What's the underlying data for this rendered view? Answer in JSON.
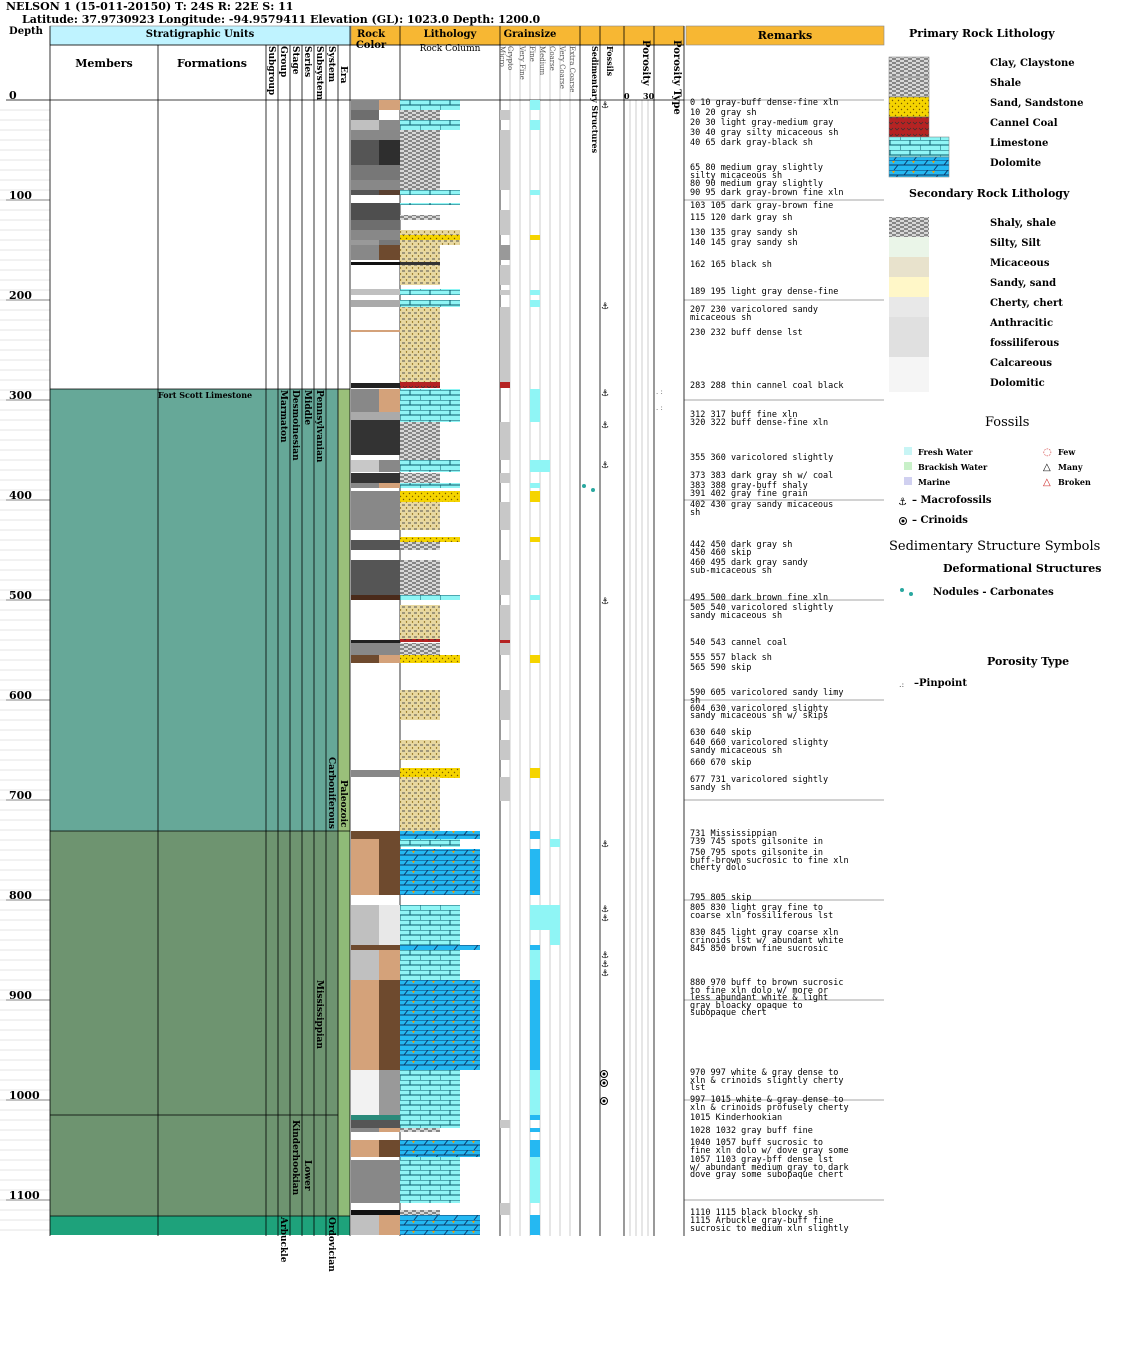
{
  "header": {
    "line1": "NELSON 1 (15-011-20150) T: 24S R: 22E S: 11",
    "line2": "Latitude: 37.9730923 Longitude: -94.9579411 Elevation (GL): 1023.0 Depth: 1200.0"
  },
  "columns": {
    "depth": "Depth",
    "strat_units": "Stratigraphic Units",
    "members": "Members",
    "formations": "Formations",
    "rank_labels": [
      "Subgroup",
      "Group",
      "Stage",
      "Series",
      "Subsystem",
      "System",
      "Era"
    ],
    "rock_color": "Rock Color",
    "lithology": "Lithology",
    "rock_column": "Rock Column",
    "grainsize": "Grainsize",
    "grain_classes": [
      "Micro",
      "Crypto",
      "Very Fine",
      "Fine",
      "Medium",
      "Coarse",
      "Very Coarse",
      "Extra Coarse"
    ],
    "sed_structures": "Sedimentary Structures",
    "fossils": "Fossils",
    "porosity": "Porosity",
    "porosity_scale": [
      "0",
      "30"
    ],
    "porosity_type": "Porosity Type",
    "remarks": "Remarks"
  },
  "depth_ticks": [
    "0",
    "100",
    "200",
    "300",
    "400",
    "500",
    "600",
    "700",
    "800",
    "900",
    "1000",
    "1100"
  ],
  "strat_labels": {
    "formation": "Fort Scott Limestone",
    "group": "Marmaton",
    "stage": "Desmoinesian",
    "series_middle": "Middle",
    "subsystem_penn": "Pennsylvanian",
    "system_carb": "Carboniferous",
    "era": "Paleozoic",
    "subsystem_miss": "Mississippian",
    "stage_kind": "Kinderhookian",
    "series_lower": "Lower",
    "group_arb": "Arbuckle",
    "system_ord": "Ordovician"
  },
  "remarks": [
    "0 10 gray-buff dense-fine xln",
    "10 20 gray sh",
    "20 30 light gray-medium gray",
    "30 40 gray silty micaceous sh",
    "40 65 dark gray-black sh",
    "65 80 medium gray slightly\nsilty micaceous sh",
    "80 90 medium gray slightly",
    "90 95 dark gray-brown fine xln",
    "103 105 dark gray-brown fine",
    "115 120 dark gray sh",
    "130 135 gray sandy sh",
    "140 145 gray sandy sh",
    "162 165 black sh",
    "189 195 light gray dense-fine",
    "207 230 varicolored sandy\nmicaceous sh",
    "230 232 buff dense lst",
    "283 288 thin cannel coal black",
    "312 317 buff fine xln",
    "320 322 buff dense-fine xln",
    "355 360 varicolored slightly",
    "373 383 dark gray sh w/ coal",
    "383 388 gray-buff shaly",
    "391 402 gray fine grain",
    "402 430 gray sandy micaceous\nsh",
    "442 450 dark gray sh",
    "450 460 skip",
    "460 495 dark gray sandy\nsub-micaceous sh",
    "495 500 dark brown fine xln",
    "505 540 varicolored slightly\nsandy micaceous sh",
    "540 543 cannel coal",
    "555 557 black sh",
    "565 590 skip",
    "590 605 varicolored sandy limy\nsh",
    "604 630 varicolored slighty\nsandy micaceous sh w/ skips",
    "630 640 skip",
    "640 660 varicolored slighty\nsandy micaceous sh",
    "660 670 skip",
    "677 731 varicolored sightly\nsandy sh",
    "731 Mississippian",
    "739 745 spots gilsonite in",
    "750 795 spots gilsonite in\nbuff-brown sucrosic to fine xln\ncherty dolo",
    "795 805 skip",
    "805 830 light gray fine to\ncoarse xln fossiliferous lst",
    "830 845 light gray coarse xln\ncrinoids lst w/ abundant white",
    "845 850 brown fine sucrosic",
    "880 970 buff to brown sucrosic\nto fine xln dolo w/ more or\nless abundant white & light\ngray bloacky opaque to\nsubopaque chert",
    "970 997 white & gray dense to\nxln & crinoids slightly cherty\nlst",
    "997 1015 white & gray dense to\nxln & crinoids profusely cherty",
    "1015 Kinderhookian",
    "1028 1032 gray buff fine",
    "1040 1057 buff sucrosic to\nfine xln dolo w/ dove gray some",
    "1057 1103 gray-bff dense lst\nw/ abundant medium gray to dark\ndove gray some subopaque chert",
    "1110 1115 black blocky sh",
    "1115 Arbuckle gray-buff fine\nsucrosic to medium xln slightly"
  ],
  "legend": {
    "primary_title": "Primary Rock Lithology",
    "primary": [
      "Clay, Claystone",
      "Shale",
      "Sand, Sandstone",
      "Cannel Coal",
      "Limestone",
      "Dolomite"
    ],
    "secondary_title": "Secondary Rock Lithology",
    "secondary": [
      "Shaly, shale",
      "Silty, Silt",
      "Micaceous",
      "Sandy, sand",
      "Cherty, chert",
      "Anthracitic",
      "fossiliferous",
      "Calcareous",
      "Dolomitic"
    ],
    "fossils_title": "Fossils",
    "fossil_env": [
      "Fresh Water",
      "Brackish Water",
      "Marine"
    ],
    "fossil_abund": [
      "Few",
      "Many",
      "Broken"
    ],
    "macro": "– Macrofossils",
    "crinoids": "– Crinoids",
    "sed_title": "Sedimentary Structure Symbols",
    "deform_title": "Deformational Structures",
    "nodules": "Nodules - Carbonates",
    "porosity_title": "Porosity Type",
    "pinpoint": "–Pinpoint"
  },
  "colors": {
    "strat_header": "#bff3ff",
    "lith_header": "#f7b733",
    "penn": "#66a898",
    "miss": "#6e9470",
    "ordovician": "#1ea27b",
    "limestone": "#8ff5f5",
    "dolomite": "#25b8f2",
    "sand": "#f5d400",
    "coal": "#b52323",
    "shale": "#808080"
  }
}
